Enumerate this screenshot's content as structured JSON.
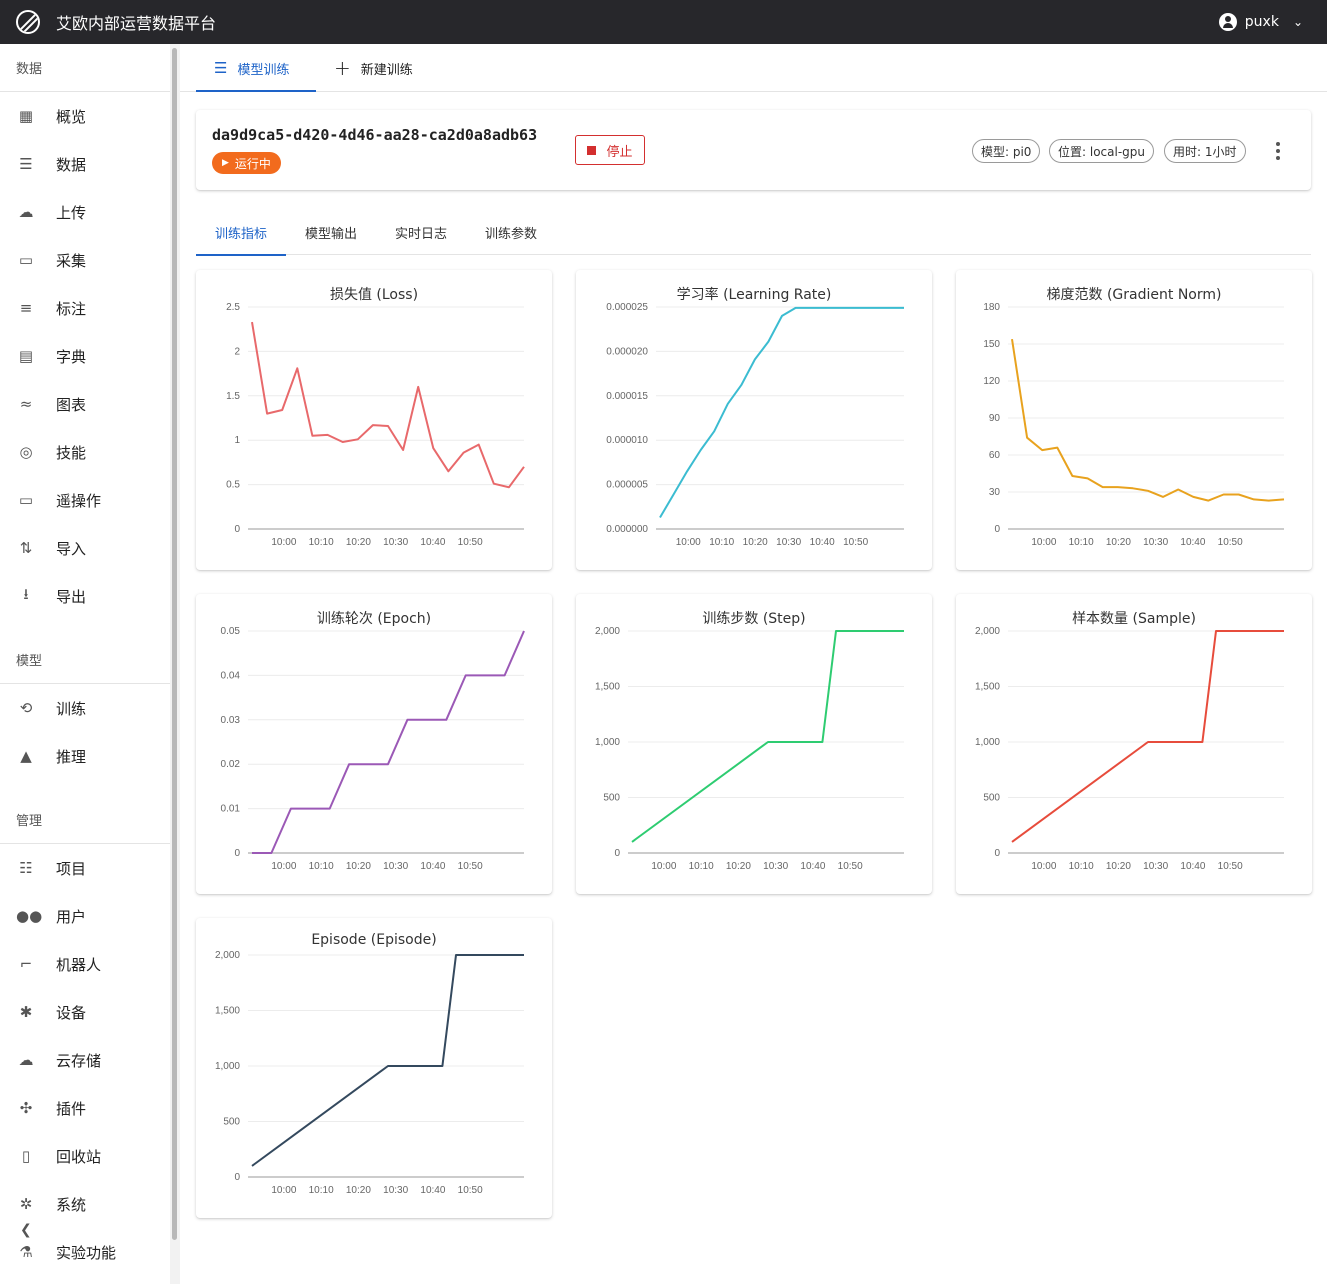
{
  "header": {
    "title": "艾欧内部运营数据平台",
    "user": "puxk"
  },
  "sidebar": {
    "sections": [
      {
        "label": "数据",
        "items": [
          {
            "label": "概览",
            "icon": "dashboard-icon"
          },
          {
            "label": "数据",
            "icon": "storage-icon"
          },
          {
            "label": "上传",
            "icon": "cloud-upload-icon"
          },
          {
            "label": "采集",
            "icon": "video-camera-icon"
          },
          {
            "label": "标注",
            "icon": "list-numbered-icon"
          },
          {
            "label": "字典",
            "icon": "book-icon"
          },
          {
            "label": "图表",
            "icon": "chart-icon"
          },
          {
            "label": "技能",
            "icon": "skill-icon"
          },
          {
            "label": "遥操作",
            "icon": "gamepad-icon"
          },
          {
            "label": "导入",
            "icon": "import-icon"
          },
          {
            "label": "导出",
            "icon": "download-icon"
          }
        ]
      },
      {
        "label": "模型",
        "items": [
          {
            "label": "训练",
            "icon": "train-icon"
          },
          {
            "label": "推理",
            "icon": "inference-icon"
          }
        ]
      },
      {
        "label": "管理",
        "items": [
          {
            "label": "项目",
            "icon": "project-icon"
          },
          {
            "label": "用户",
            "icon": "users-icon"
          },
          {
            "label": "机器人",
            "icon": "robot-arm-icon"
          },
          {
            "label": "设备",
            "icon": "device-hub-icon"
          },
          {
            "label": "云存储",
            "icon": "cloud-icon"
          },
          {
            "label": "插件",
            "icon": "puzzle-icon"
          },
          {
            "label": "回收站",
            "icon": "trash-icon"
          },
          {
            "label": "系统",
            "icon": "gear-icon"
          },
          {
            "label": "实验功能",
            "icon": "flask-icon"
          }
        ]
      }
    ]
  },
  "top_tabs": [
    {
      "label": "模型训练",
      "active": true
    },
    {
      "label": "新建训练",
      "active": false
    }
  ],
  "run": {
    "id": "da9d9ca5-d420-4d46-aa28-ca2d0a8adb63",
    "status": "运行中",
    "stop_label": "停止",
    "chips": [
      "模型: pi0",
      "位置: local-gpu",
      "用时: 1小时"
    ]
  },
  "sub_tabs": [
    {
      "label": "训练指标",
      "active": true
    },
    {
      "label": "模型输出",
      "active": false
    },
    {
      "label": "实时日志",
      "active": false
    },
    {
      "label": "训练参数",
      "active": false
    }
  ],
  "chart_data": [
    {
      "type": "line",
      "title": "损失值 (Loss)",
      "color": "#e8696b",
      "ylim": [
        0,
        2.5
      ],
      "yticks": [
        "0",
        "0.5",
        "1",
        "1.5",
        "2",
        "2.5"
      ],
      "xticks": [
        "10:00",
        "10:10",
        "10:20",
        "10:30",
        "10:40",
        "10:50"
      ],
      "values": [
        2.33,
        1.3,
        1.34,
        1.81,
        1.05,
        1.06,
        0.98,
        1.01,
        1.17,
        1.16,
        0.89,
        1.6,
        0.91,
        0.65,
        0.86,
        0.95,
        0.51,
        0.47,
        0.7
      ]
    },
    {
      "type": "line",
      "title": "学习率 (Learning Rate)",
      "color": "#3bbcd1",
      "ylim": [
        0,
        2.5e-05
      ],
      "yticks": [
        "0.000000",
        "0.000005",
        "0.000010",
        "0.000015",
        "0.000020",
        "0.000025"
      ],
      "xticks": [
        "10:00",
        "10:10",
        "10:20",
        "10:30",
        "10:40",
        "10:50"
      ],
      "values": [
        1.3e-06,
        3.9e-06,
        6.5e-06,
        8.9e-06,
        1.1e-05,
        1.41e-05,
        1.62e-05,
        1.91e-05,
        2.11e-05,
        2.4e-05,
        2.49e-05,
        2.49e-05,
        2.49e-05,
        2.49e-05,
        2.49e-05,
        2.49e-05,
        2.49e-05,
        2.49e-05,
        2.49e-05
      ]
    },
    {
      "type": "line",
      "title": "梯度范数 (Gradient Norm)",
      "color": "#e8a21e",
      "ylim": [
        0,
        180
      ],
      "yticks": [
        "0",
        "30",
        "60",
        "90",
        "120",
        "150",
        "180"
      ],
      "xticks": [
        "10:00",
        "10:10",
        "10:20",
        "10:30",
        "10:40",
        "10:50"
      ],
      "values": [
        154,
        74,
        64,
        66,
        43,
        41,
        34,
        34,
        33,
        31,
        26,
        32,
        26,
        23,
        28,
        28,
        24,
        23,
        24
      ]
    },
    {
      "type": "line",
      "title": "训练轮次 (Epoch)",
      "color": "#9b59b6",
      "ylim": [
        0,
        0.05
      ],
      "yticks": [
        "0",
        "0.01",
        "0.02",
        "0.03",
        "0.04",
        "0.05"
      ],
      "xticks": [
        "10:00",
        "10:10",
        "10:20",
        "10:30",
        "10:40",
        "10:50"
      ],
      "values": [
        0,
        0,
        0.01,
        0.01,
        0.01,
        0.02,
        0.02,
        0.02,
        0.03,
        0.03,
        0.03,
        0.04,
        0.04,
        0.04,
        0.05
      ]
    },
    {
      "type": "line",
      "title": "训练步数 (Step)",
      "color": "#2ecc71",
      "ylim": [
        0,
        2000
      ],
      "yticks": [
        "0",
        "500",
        "1,000",
        "1,500",
        "2,000"
      ],
      "xticks": [
        "10:00",
        "10:10",
        "10:20",
        "10:30",
        "10:40",
        "10:50"
      ],
      "values": [
        100,
        1000,
        1000,
        2000,
        2000
      ]
    },
    {
      "type": "line",
      "title": "样本数量 (Sample)",
      "color": "#e74c3c",
      "ylim": [
        0,
        2000
      ],
      "yticks": [
        "0",
        "500",
        "1,000",
        "1,500",
        "2,000"
      ],
      "xticks": [
        "10:00",
        "10:10",
        "10:20",
        "10:30",
        "10:40",
        "10:50"
      ],
      "values": [
        100,
        1000,
        1000,
        2000,
        2000
      ]
    },
    {
      "type": "line",
      "title": "Episode (Episode)",
      "color": "#34495e",
      "ylim": [
        0,
        2000
      ],
      "yticks": [
        "0",
        "500",
        "1,000",
        "1,500",
        "2,000"
      ],
      "xticks": [
        "10:00",
        "10:10",
        "10:20",
        "10:30",
        "10:40",
        "10:50"
      ],
      "values": [
        100,
        1000,
        1000,
        2000,
        2000
      ]
    }
  ]
}
